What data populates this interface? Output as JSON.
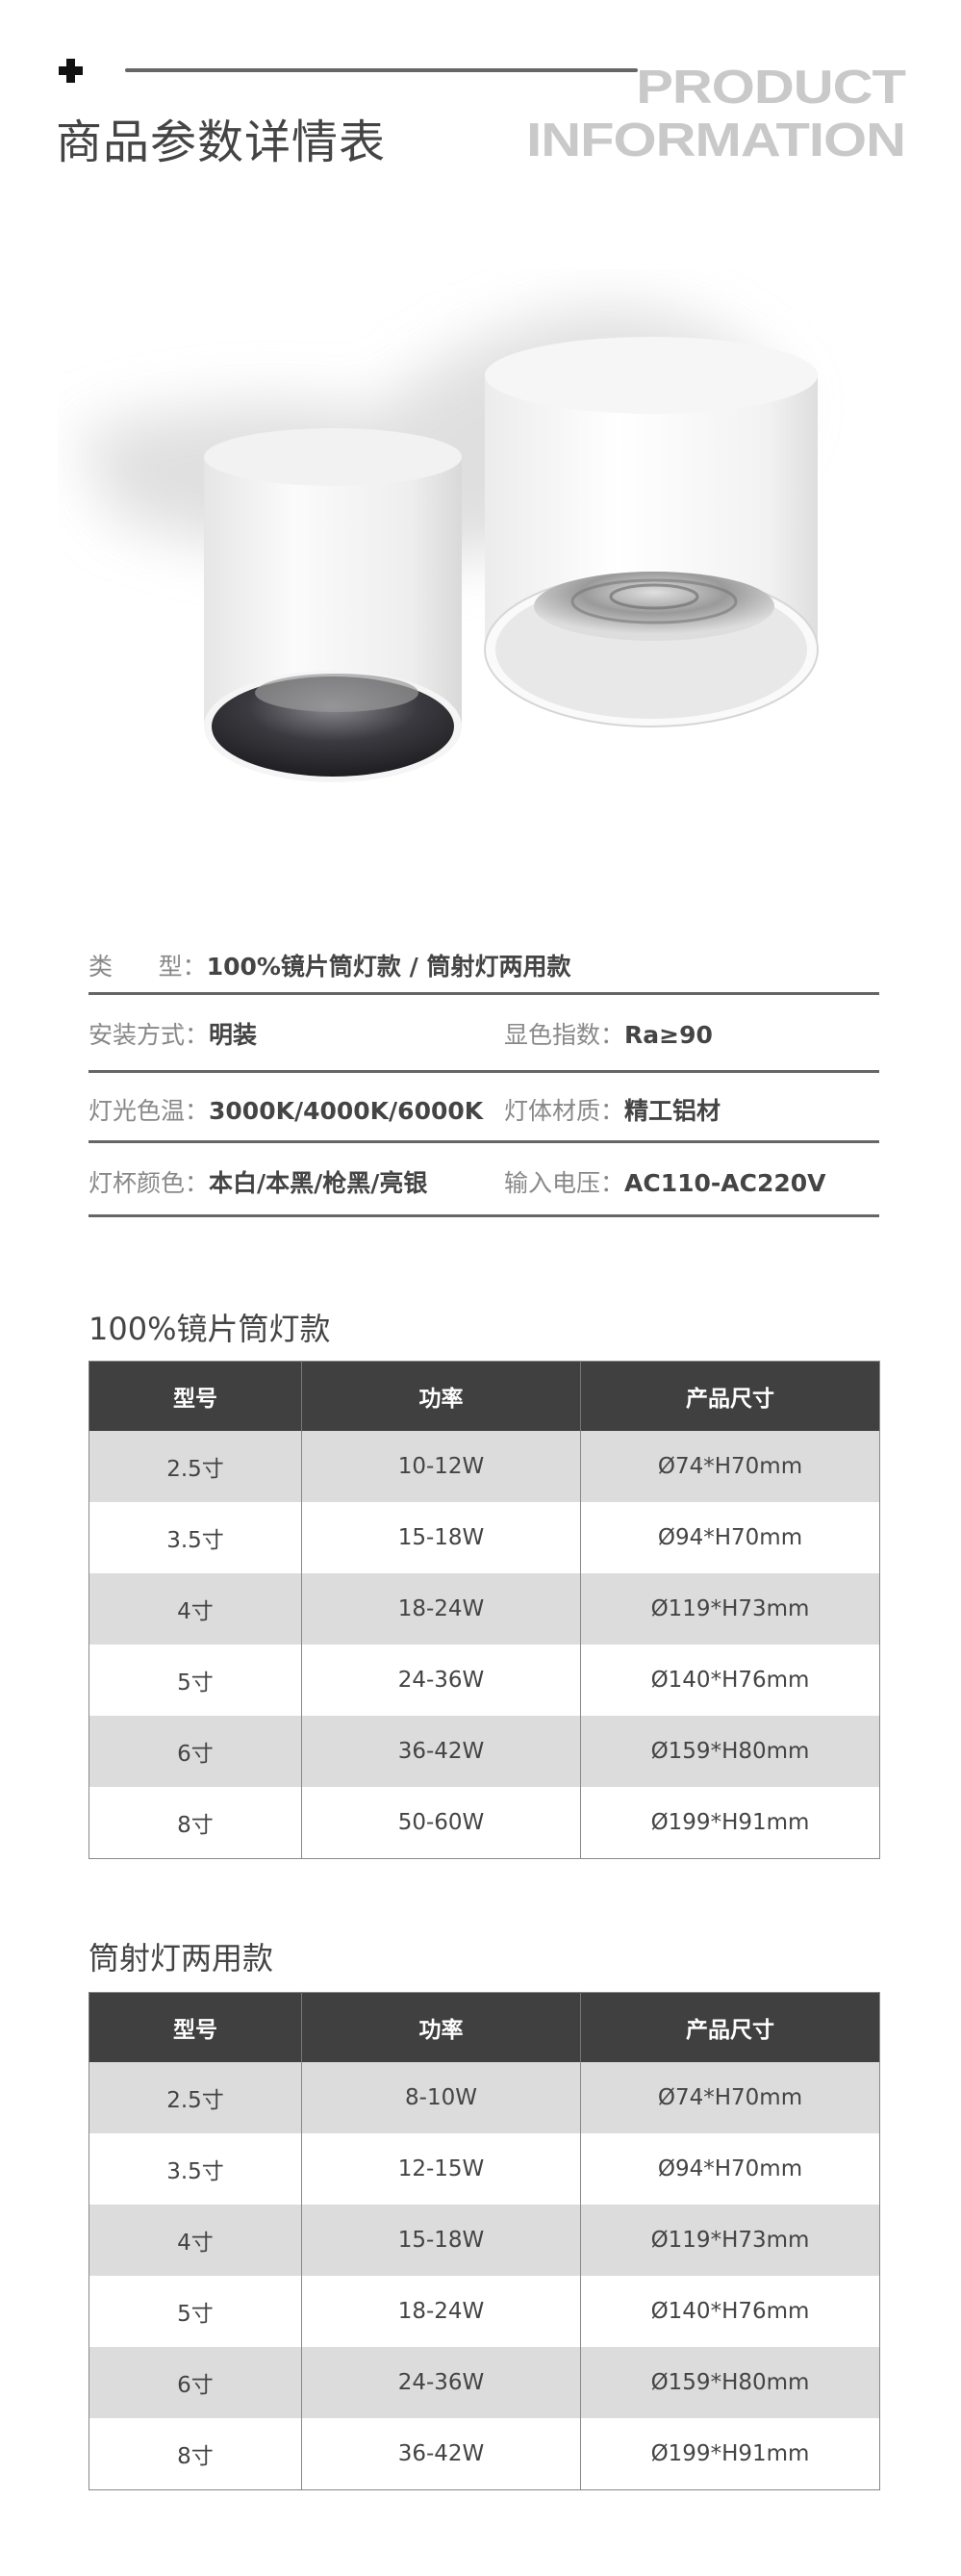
{
  "header": {
    "plus_icon": "plus-icon",
    "title": "商品参数详情表",
    "en_line1": "PRODUCT",
    "en_line2": "INFORMATION"
  },
  "specs": {
    "type_label": "类      型：",
    "type_value": "100%镜片筒灯款 / 筒射灯两用款",
    "install_label": "安装方式：",
    "install_value": "明装",
    "cri_label": "显色指数：",
    "cri_value": "Ra≥90",
    "cct_label": "灯光色温：",
    "cct_value": "3000K/4000K/6000K",
    "material_label": "灯体材质：",
    "material_value": "精工铝材",
    "cup_color_label": "灯杯颜色：",
    "cup_color_value": "本白/本黑/枪黑/亮银",
    "voltage_label": "输入电压：",
    "voltage_value": "AC110-AC220V"
  },
  "tables": [
    {
      "title": "100%镜片筒灯款",
      "headers": [
        "型号",
        "功率",
        "产品尺寸"
      ],
      "rows": [
        [
          "2.5寸",
          "10-12W",
          "Ø74*H70mm"
        ],
        [
          "3.5寸",
          "15-18W",
          "Ø94*H70mm"
        ],
        [
          "4寸",
          "18-24W",
          "Ø119*H73mm"
        ],
        [
          "5寸",
          "24-36W",
          "Ø140*H76mm"
        ],
        [
          "6寸",
          "36-42W",
          "Ø159*H80mm"
        ],
        [
          "8寸",
          "50-60W",
          "Ø199*H91mm"
        ]
      ]
    },
    {
      "title": "筒射灯两用款",
      "headers": [
        "型号",
        "功率",
        "产品尺寸"
      ],
      "rows": [
        [
          "2.5寸",
          "8-10W",
          "Ø74*H70mm"
        ],
        [
          "3.5寸",
          "12-15W",
          "Ø94*H70mm"
        ],
        [
          "4寸",
          "15-18W",
          "Ø119*H73mm"
        ],
        [
          "5寸",
          "18-24W",
          "Ø140*H76mm"
        ],
        [
          "6寸",
          "24-36W",
          "Ø159*H80mm"
        ],
        [
          "8寸",
          "36-42W",
          "Ø199*H91mm"
        ]
      ]
    }
  ],
  "colors": {
    "table_header_bg": "#404040",
    "row_alt_bg": "#dcdcdc",
    "heading_gray": "#c9c9c9",
    "text": "#444444"
  }
}
